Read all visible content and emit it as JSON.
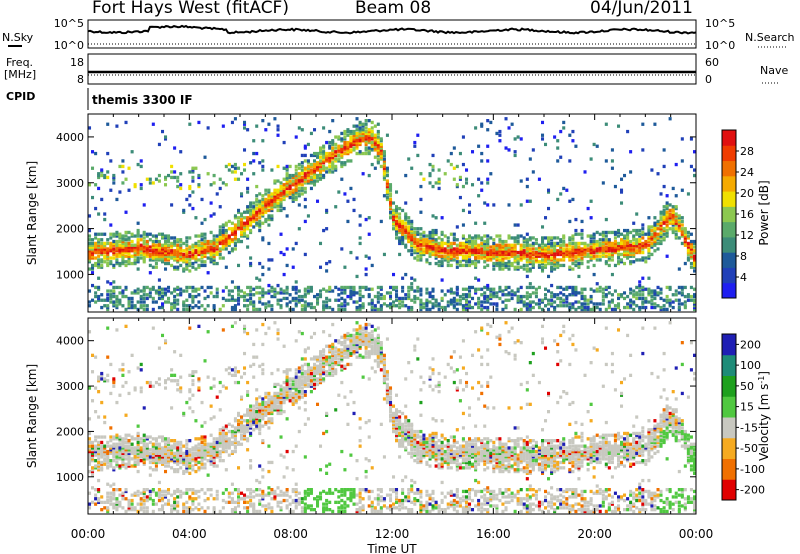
{
  "header": {
    "station": "Fort Hays West (fitACF)",
    "beam": "Beam 08",
    "date": "04/Jun/2011"
  },
  "panels": {
    "sky": {
      "left_label": "N.Sky",
      "right_label": "N.Search",
      "left_ticks": [
        "10^5",
        "10^0"
      ],
      "right_ticks": [
        "10^5",
        "10^0"
      ]
    },
    "freq": {
      "left_label_1": "Freq.",
      "left_label_2": "[MHz]",
      "right_label": "Nave",
      "left_ticks": [
        "18",
        "8"
      ],
      "right_ticks": [
        "60",
        "0"
      ]
    },
    "cpid": {
      "label": "CPID",
      "value": "themis 3300 IF"
    }
  },
  "colors": {
    "power_scale": [
      "#1f1ff0",
      "#2040b8",
      "#1e5a9a",
      "#3c8c78",
      "#5aaa6a",
      "#8cc850",
      "#f0e000",
      "#f5aa00",
      "#f07000",
      "#f03c00",
      "#e01010"
    ],
    "velocity_scale": [
      "#e00000",
      "#f07000",
      "#f5aa20",
      "#c8c8c0",
      "#50c840",
      "#1ea01e",
      "#1e8c78",
      "#1f1fb4"
    ]
  },
  "chart_data": [
    {
      "type": "heatmap",
      "name": "power",
      "ylabel": "Slant Range [km]",
      "ylim": [
        180,
        4500
      ],
      "y_ticks": [
        1000,
        2000,
        3000,
        4000
      ],
      "x_ticks": [
        "00:00",
        "04:00",
        "08:00",
        "12:00",
        "16:00",
        "20:00",
        "00:00"
      ],
      "colorbar": {
        "label": "Power [dB]",
        "range": [
          0,
          32
        ],
        "ticks": [
          "4",
          "8",
          "12",
          "16",
          "20",
          "24",
          "28"
        ]
      },
      "echo_band": {
        "hours": [
          0,
          1,
          2,
          3,
          4,
          5,
          6,
          7,
          8,
          9,
          10,
          11,
          11.5,
          12,
          13,
          14,
          16,
          18,
          20,
          22,
          23,
          24
        ],
        "range_km": [
          1450,
          1500,
          1550,
          1450,
          1400,
          1550,
          2000,
          2500,
          2900,
          3300,
          3700,
          4000,
          3700,
          2200,
          1600,
          1500,
          1450,
          1400,
          1500,
          1600,
          2300,
          1200
        ]
      }
    },
    {
      "type": "heatmap",
      "name": "velocity",
      "ylabel": "Slant Range [km]",
      "ylim": [
        180,
        4500
      ],
      "y_ticks": [
        1000,
        2000,
        3000,
        4000
      ],
      "x_ticks": [
        "00:00",
        "04:00",
        "08:00",
        "12:00",
        "16:00",
        "20:00",
        "00:00"
      ],
      "xlabel": "Time UT",
      "colorbar": {
        "label": "Velocity [m s^-1]",
        "range": [
          -250,
          250
        ],
        "ticks": [
          "200",
          "100",
          "50",
          "15",
          "-15",
          "-50",
          "-100",
          "-200"
        ]
      }
    }
  ]
}
